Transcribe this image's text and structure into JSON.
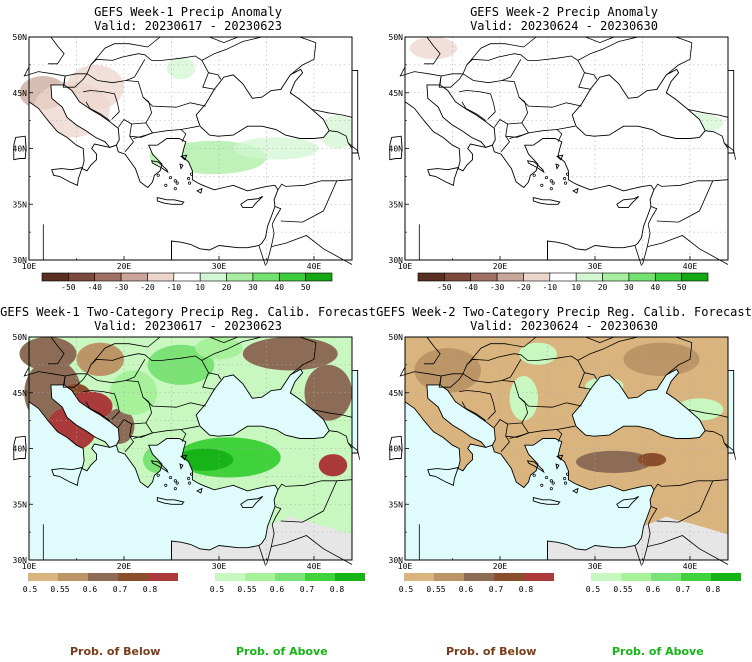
{
  "panels": [
    {
      "title": "GEFS Week-1 Precip Anomaly",
      "valid": "Valid: 20230617 - 20230623",
      "kind": "anomaly",
      "patches": [
        {
          "lon": 11.5,
          "lat": 45.0,
          "rx": 2.5,
          "ry": 1.5,
          "value": -20
        },
        {
          "lon": 14.5,
          "lat": 43.5,
          "rx": 4.0,
          "ry": 2.5,
          "value": -10
        },
        {
          "lon": 17.0,
          "lat": 45.5,
          "rx": 3.0,
          "ry": 2.0,
          "value": -10
        },
        {
          "lon": 29.5,
          "lat": 39.2,
          "rx": 5.5,
          "ry": 1.5,
          "value": 20
        },
        {
          "lon": 24.0,
          "lat": 39.3,
          "rx": 1.3,
          "ry": 0.8,
          "value": 20
        },
        {
          "lon": 36.0,
          "lat": 40.0,
          "rx": 4.5,
          "ry": 1.0,
          "value": 10
        },
        {
          "lon": 42.5,
          "lat": 41.5,
          "rx": 2.0,
          "ry": 1.5,
          "value": 10
        },
        {
          "lon": 26.0,
          "lat": 47.2,
          "rx": 1.5,
          "ry": 1.0,
          "value": 10
        }
      ]
    },
    {
      "title": "GEFS Week-2 Precip Anomaly",
      "valid": "Valid: 20230624 - 20230630",
      "kind": "anomaly",
      "patches": [
        {
          "lon": 13.0,
          "lat": 49.0,
          "rx": 2.5,
          "ry": 1.0,
          "value": -10
        },
        {
          "lon": 40.5,
          "lat": 42.3,
          "rx": 3.0,
          "ry": 0.9,
          "value": 10
        }
      ]
    },
    {
      "title": "GEFS Week-1 Two-Category Precip Reg. Calib. Forecast",
      "valid": "Valid: 20230617 - 20230623",
      "kind": "category",
      "land_default": 0.5,
      "patches": [
        {
          "lon": 12.5,
          "lat": 45.0,
          "rx": 3.0,
          "ry": 3.0,
          "value": -0.6
        },
        {
          "lon": 15.0,
          "lat": 44.8,
          "rx": 1.5,
          "ry": 1.0,
          "value": -0.7
        },
        {
          "lon": 14.5,
          "lat": 41.8,
          "rx": 2.6,
          "ry": 2.0,
          "value": -0.8
        },
        {
          "lon": 16.5,
          "lat": 43.8,
          "rx": 2.3,
          "ry": 1.3,
          "value": -0.8
        },
        {
          "lon": 19.5,
          "lat": 42.0,
          "rx": 1.6,
          "ry": 1.6,
          "value": -0.6
        },
        {
          "lon": 12.0,
          "lat": 48.5,
          "rx": 3.0,
          "ry": 1.5,
          "value": -0.6
        },
        {
          "lon": 17.5,
          "lat": 48.0,
          "rx": 2.5,
          "ry": 1.5,
          "value": -0.55
        },
        {
          "lon": 37.5,
          "lat": 48.5,
          "rx": 5.0,
          "ry": 1.5,
          "value": -0.6
        },
        {
          "lon": 41.5,
          "lat": 45.0,
          "rx": 2.5,
          "ry": 2.5,
          "value": -0.6
        },
        {
          "lon": 42.0,
          "lat": 38.5,
          "rx": 1.5,
          "ry": 1.0,
          "value": -0.8
        },
        {
          "lon": 21.0,
          "lat": 45.0,
          "rx": 2.5,
          "ry": 2.0,
          "value": 0.55
        },
        {
          "lon": 26.0,
          "lat": 47.5,
          "rx": 3.5,
          "ry": 1.8,
          "value": 0.6
        },
        {
          "lon": 30.0,
          "lat": 49.0,
          "rx": 2.5,
          "ry": 1.0,
          "value": 0.55
        },
        {
          "lon": 31.0,
          "lat": 39.2,
          "rx": 5.5,
          "ry": 1.8,
          "value": 0.7
        },
        {
          "lon": 28.5,
          "lat": 39.0,
          "rx": 3.0,
          "ry": 1.0,
          "value": 0.8
        },
        {
          "lon": 23.5,
          "lat": 39.0,
          "rx": 1.5,
          "ry": 1.2,
          "value": 0.6
        }
      ]
    },
    {
      "title": "GEFS Week-2 Two-Category Precip Reg. Calib. Forecast",
      "valid": "Valid: 20230624 - 20230630",
      "kind": "category",
      "land_default": -0.5,
      "patches": [
        {
          "lon": 14.5,
          "lat": 47.0,
          "rx": 3.5,
          "ry": 2.0,
          "value": -0.55
        },
        {
          "lon": 37.0,
          "lat": 48.0,
          "rx": 4.0,
          "ry": 1.5,
          "value": -0.55
        },
        {
          "lon": 32.0,
          "lat": 38.8,
          "rx": 4.0,
          "ry": 1.0,
          "value": -0.6
        },
        {
          "lon": 36.0,
          "lat": 39.0,
          "rx": 1.5,
          "ry": 0.6,
          "value": -0.7
        },
        {
          "lon": 22.5,
          "lat": 44.5,
          "rx": 1.5,
          "ry": 2.0,
          "value": 0.5
        },
        {
          "lon": 31.0,
          "lat": 45.6,
          "rx": 2.0,
          "ry": 0.8,
          "value": 0.5
        },
        {
          "lon": 41.0,
          "lat": 43.5,
          "rx": 2.5,
          "ry": 1.0,
          "value": 0.5
        },
        {
          "lon": 24.0,
          "lat": 48.5,
          "rx": 2.0,
          "ry": 1.0,
          "value": 0.5
        }
      ]
    }
  ],
  "chart_data": [
    {
      "type": "heatmap",
      "title": "GEFS Week-1 Precip Anomaly",
      "subtitle": "Valid: 20230617 - 20230623",
      "x_ticks": [
        "10E",
        "20E",
        "30E",
        "40E"
      ],
      "y_ticks": [
        "30N",
        "35N",
        "40N",
        "45N",
        "50N"
      ],
      "colorbar": [
        -50,
        -40,
        -30,
        -20,
        -10,
        10,
        20,
        30,
        40,
        50
      ]
    },
    {
      "type": "heatmap",
      "title": "GEFS Week-2 Precip Anomaly",
      "subtitle": "Valid: 20230624 - 20230630",
      "x_ticks": [
        "10E",
        "20E",
        "30E",
        "40E"
      ],
      "y_ticks": [
        "30N",
        "35N",
        "40N",
        "45N",
        "50N"
      ],
      "colorbar": [
        -50,
        -40,
        -30,
        -20,
        -10,
        10,
        20,
        30,
        40,
        50
      ]
    },
    {
      "type": "heatmap",
      "title": "GEFS Week-1 Two-Category Precip Reg. Calib. Forecast",
      "subtitle": "Valid: 20230617 - 20230623",
      "x_ticks": [
        "10E",
        "20E",
        "30E",
        "40E"
      ],
      "y_ticks": [
        "30N",
        "35N",
        "40N",
        "45N",
        "50N"
      ],
      "colorbar_below": [
        0.5,
        0.55,
        0.6,
        0.7,
        0.8
      ],
      "colorbar_above": [
        0.5,
        0.55,
        0.6,
        0.7,
        0.8
      ]
    },
    {
      "type": "heatmap",
      "title": "GEFS Week-2 Two-Category Precip Reg. Calib. Forecast",
      "subtitle": "Valid: 20230624 - 20230630",
      "x_ticks": [
        "10E",
        "20E",
        "30E",
        "40E"
      ],
      "y_ticks": [
        "30N",
        "35N",
        "40N",
        "45N",
        "50N"
      ],
      "colorbar_below": [
        0.5,
        0.55,
        0.6,
        0.7,
        0.8
      ],
      "colorbar_above": [
        0.5,
        0.55,
        0.6,
        0.7,
        0.8
      ]
    }
  ],
  "axes": {
    "lon_min": 10,
    "lon_max": 44,
    "lat_min": 30,
    "lat_max": 50,
    "x_ticks": [
      {
        "value": 10,
        "label": "10E"
      },
      {
        "value": 20,
        "label": "20E"
      },
      {
        "value": 30,
        "label": "30E"
      },
      {
        "value": 40,
        "label": "40E"
      }
    ],
    "y_ticks": [
      {
        "value": 30,
        "label": "30N"
      },
      {
        "value": 35,
        "label": "35N"
      },
      {
        "value": 40,
        "label": "40N"
      },
      {
        "value": 45,
        "label": "45N"
      },
      {
        "value": 50,
        "label": "50N"
      }
    ],
    "minor_x": [
      15,
      25,
      35
    ],
    "minor_y": [
      32.5,
      37.5,
      42.5,
      47.5
    ]
  },
  "anomaly_colorbar": {
    "labels": [
      "-50",
      "-40",
      "-30",
      "-20",
      "-10",
      "10",
      "20",
      "30",
      "40",
      "50"
    ],
    "colors": [
      "#5a2e22",
      "#7c4a3c",
      "#a07064",
      "#c9a59a",
      "#ecd6cc",
      "#ffffff",
      "#d2f6d2",
      "#a8eea0",
      "#74e270",
      "#3ccc3c",
      "#14a814"
    ]
  },
  "below_colorbar": {
    "labels": [
      "0.5",
      "0.55",
      "0.6",
      "0.7",
      "0.8"
    ],
    "colors": [
      "#d9b47e",
      "#bc9567",
      "#8c6c56",
      "#8a4e2c",
      "#ab3a3a"
    ]
  },
  "above_colorbar": {
    "labels": [
      "0.5",
      "0.55",
      "0.6",
      "0.7",
      "0.8"
    ],
    "colors": [
      "#c8f7c0",
      "#a6f19a",
      "#7be375",
      "#3fd23b",
      "#16b416"
    ]
  },
  "colors": {
    "ocean_category": "#e0fbfb",
    "no_data": "#e6e6e6",
    "land_anomaly": "#ffffff",
    "border": "#000000"
  },
  "footer": {
    "below_label": "Prob. of Below",
    "above_label": "Prob. of Above",
    "below_color": "#7a3b1a",
    "above_color": "#16b416"
  }
}
